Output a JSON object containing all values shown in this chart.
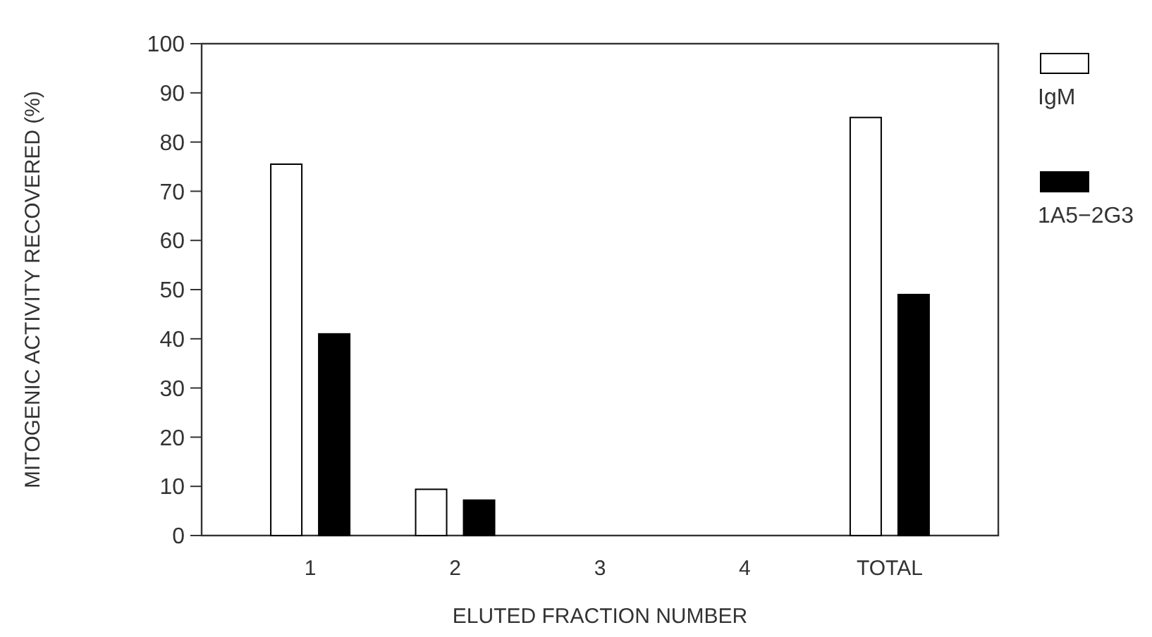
{
  "chart_data": {
    "type": "bar",
    "xlabel": "ELUTED FRACTION NUMBER",
    "ylabel": "MITOGENIC ACTIVITY RECOVERED (%)",
    "categories": [
      "1",
      "2",
      "3",
      "4",
      "TOTAL"
    ],
    "series": [
      {
        "name": "IgM",
        "color": "#ffffff",
        "values": [
          75.5,
          9.4,
          0,
          0,
          85
        ]
      },
      {
        "name": "1A5−2G3",
        "color": "#000000",
        "values": [
          41,
          7.2,
          0,
          0,
          49
        ]
      }
    ],
    "ylim": [
      0,
      100
    ],
    "yticks": [
      0,
      10,
      20,
      30,
      40,
      50,
      60,
      70,
      80,
      90,
      100
    ],
    "legend": "right",
    "grid": false
  }
}
